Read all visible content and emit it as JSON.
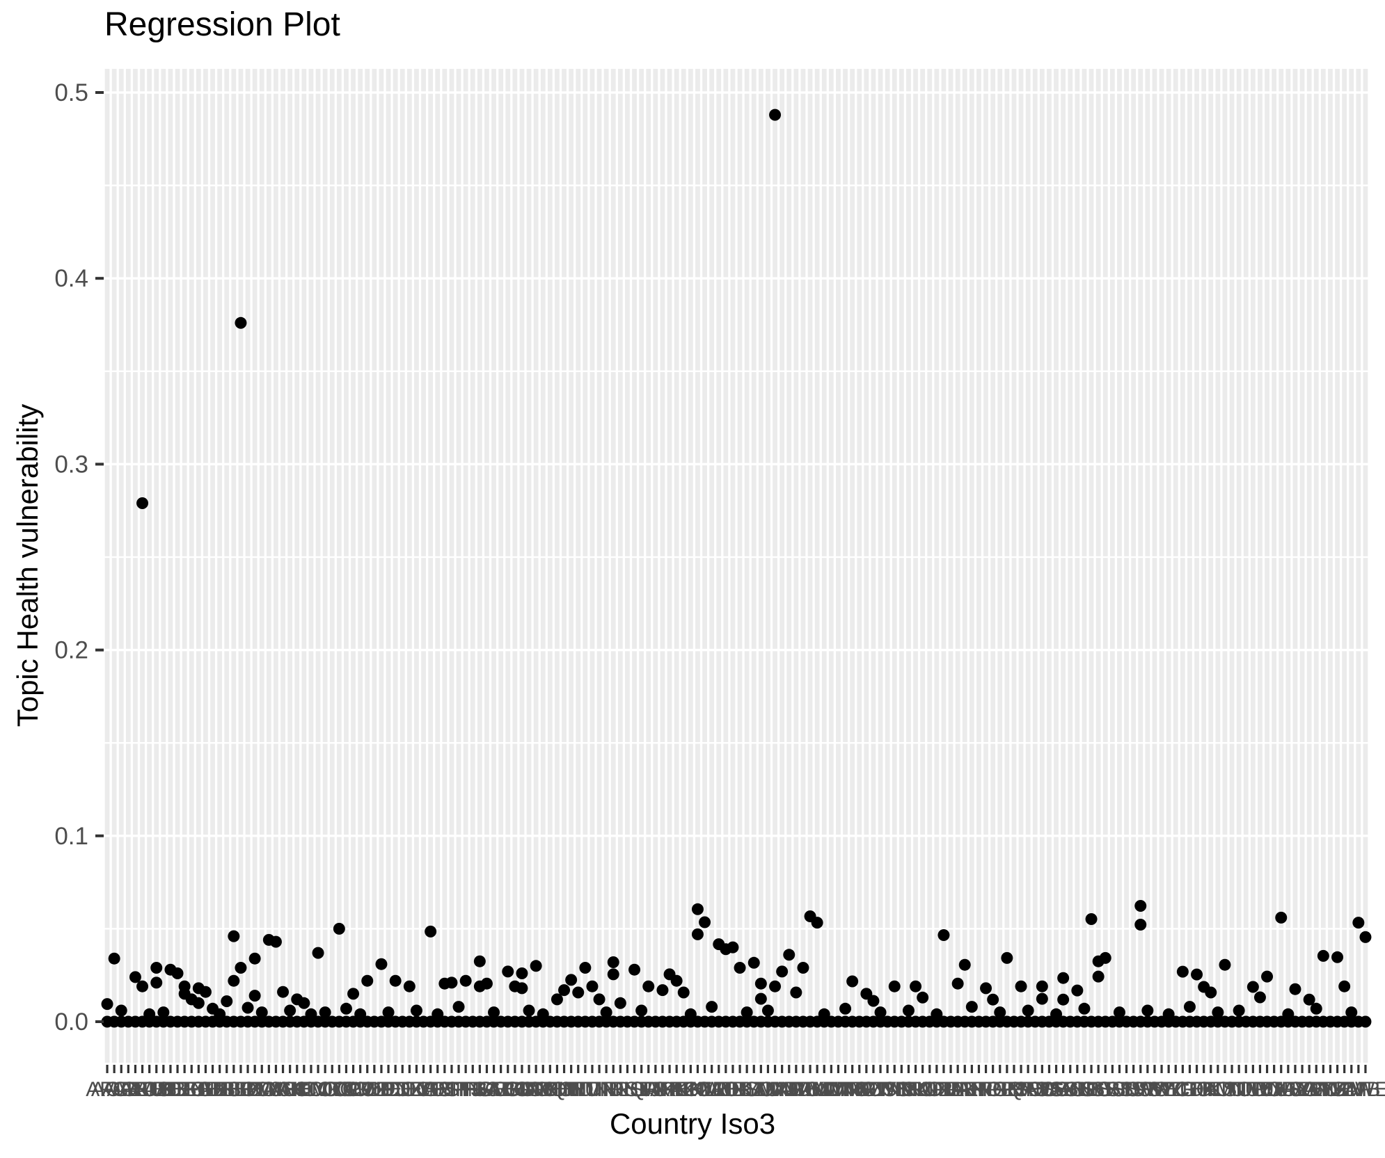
{
  "chart_data": {
    "type": "scatter",
    "title": "Regression Plot",
    "xlabel": "Country Iso3",
    "ylabel": "Topic Health vulnerability",
    "legend": "none",
    "grid": {
      "horizontal_major_every": 0.1,
      "horizontal_minor_every": 0.05,
      "vertical_stripe_per_category": true
    },
    "ylim": [
      -0.021,
      0.512
    ],
    "y_tick_values": [
      0.0,
      0.1,
      0.2,
      0.3,
      0.4,
      0.5
    ],
    "y_ticks": [
      "0.0",
      "0.1",
      "0.2",
      "0.3",
      "0.4",
      "0.5"
    ],
    "categories": [
      "AFG",
      "AGO",
      "ALB",
      "ARE",
      "ARG",
      "ARM",
      "AUS",
      "AUT",
      "AZE",
      "BDI",
      "BEL",
      "BEN",
      "BFA",
      "BGD",
      "BGR",
      "BHR",
      "BHS",
      "BIH",
      "BLR",
      "BLZ",
      "BOL",
      "BRA",
      "BTN",
      "BWA",
      "CAF",
      "CAN",
      "CHE",
      "CHL",
      "CHN",
      "CIV",
      "CMR",
      "COD",
      "COG",
      "COL",
      "COM",
      "CPV",
      "CRI",
      "CUB",
      "CYP",
      "CZE",
      "DEU",
      "DJI",
      "DNK",
      "DOM",
      "DZA",
      "ECU",
      "EGY",
      "ERI",
      "ESP",
      "EST",
      "ETH",
      "FIN",
      "FJI",
      "FRA",
      "FSM",
      "GAB",
      "GBR",
      "GEO",
      "GHA",
      "GIN",
      "GMB",
      "GNB",
      "GNQ",
      "GRC",
      "GTM",
      "GUY",
      "HND",
      "HRV",
      "HTI",
      "HUN",
      "IDN",
      "IND",
      "IRL",
      "IRN",
      "IRQ",
      "ISL",
      "ISR",
      "ITA",
      "JAM",
      "JOR",
      "JPN",
      "KAZ",
      "KEN",
      "KGZ",
      "KHM",
      "KOR",
      "KWT",
      "LAO",
      "LBN",
      "LBR",
      "LBY",
      "LKA",
      "LSO",
      "LTU",
      "LUX",
      "LVA",
      "MAR",
      "MDA",
      "MDG",
      "MDV",
      "MEX",
      "MKD",
      "MLI",
      "MLT",
      "MMR",
      "MNE",
      "MNG",
      "MOZ",
      "MRT",
      "MUS",
      "MWI",
      "MYS",
      "NAM",
      "NER",
      "NGA",
      "NIC",
      "NLD",
      "NOR",
      "NPL",
      "NZL",
      "OMN",
      "PAK",
      "PAN",
      "PER",
      "PHL",
      "PNG",
      "POL",
      "PRK",
      "PRT",
      "PRY",
      "PSE",
      "QAT",
      "ROU",
      "RUS",
      "RWA",
      "SAU",
      "SDN",
      "SEN",
      "SGP",
      "SLB",
      "SLE",
      "SLV",
      "SOM",
      "SRB",
      "SSD",
      "STP",
      "SUR",
      "SVK",
      "SVN",
      "SWE",
      "SWZ",
      "SYC",
      "SYR",
      "TCD",
      "TGO",
      "THA",
      "TJK",
      "TKM",
      "TLS",
      "TON",
      "TTO",
      "TUN",
      "TUR",
      "TUV",
      "TWN",
      "TZA",
      "UGA",
      "UKR",
      "URY",
      "USA",
      "UZB",
      "VCT",
      "VEN",
      "VNM",
      "VUT",
      "WSM",
      "YEM",
      "ZAF",
      "ZMB",
      "ZWE"
    ],
    "baseline": {
      "per_category": true,
      "value": 0.0
    },
    "points": [
      [
        0,
        0.0095
      ],
      [
        1,
        0.034
      ],
      [
        2,
        0.006
      ],
      [
        4,
        0.024
      ],
      [
        5,
        0.279
      ],
      [
        5,
        0.019
      ],
      [
        6,
        0.004
      ],
      [
        7,
        0.029
      ],
      [
        7,
        0.021
      ],
      [
        8,
        0.005
      ],
      [
        9,
        0.028
      ],
      [
        10,
        0.026
      ],
      [
        11,
        0.019
      ],
      [
        11,
        0.015
      ],
      [
        12,
        0.012
      ],
      [
        13,
        0.018
      ],
      [
        13,
        0.01
      ],
      [
        14,
        0.016
      ],
      [
        15,
        0.007
      ],
      [
        16,
        0.004
      ],
      [
        17,
        0.011
      ],
      [
        18,
        0.046
      ],
      [
        18,
        0.022
      ],
      [
        19,
        0.376
      ],
      [
        19,
        0.029
      ],
      [
        20,
        0.0075
      ],
      [
        21,
        0.034
      ],
      [
        21,
        0.014
      ],
      [
        22,
        0.005
      ],
      [
        23,
        0.044
      ],
      [
        24,
        0.043
      ],
      [
        25,
        0.016
      ],
      [
        26,
        0.006
      ],
      [
        27,
        0.012
      ],
      [
        28,
        0.01
      ],
      [
        29,
        0.004
      ],
      [
        30,
        0.037
      ],
      [
        31,
        0.005
      ],
      [
        33,
        0.05
      ],
      [
        34,
        0.007
      ],
      [
        35,
        0.015
      ],
      [
        36,
        0.004
      ],
      [
        37,
        0.022
      ],
      [
        39,
        0.031
      ],
      [
        40,
        0.005
      ],
      [
        41,
        0.022
      ],
      [
        43,
        0.019
      ],
      [
        44,
        0.006
      ],
      [
        46,
        0.0485
      ],
      [
        47,
        0.004
      ],
      [
        48,
        0.0205
      ],
      [
        49,
        0.021
      ],
      [
        50,
        0.008
      ],
      [
        51,
        0.022
      ],
      [
        53,
        0.0325
      ],
      [
        53,
        0.019
      ],
      [
        54,
        0.0205
      ],
      [
        55,
        0.005
      ],
      [
        57,
        0.027
      ],
      [
        58,
        0.019
      ],
      [
        59,
        0.026
      ],
      [
        59,
        0.018
      ],
      [
        60,
        0.006
      ],
      [
        61,
        0.03
      ],
      [
        62,
        0.004
      ],
      [
        64,
        0.012
      ],
      [
        65,
        0.017
      ],
      [
        66,
        0.0225
      ],
      [
        67,
        0.0157
      ],
      [
        68,
        0.029
      ],
      [
        69,
        0.019
      ],
      [
        70,
        0.012
      ],
      [
        71,
        0.005
      ],
      [
        72,
        0.032
      ],
      [
        72,
        0.0255
      ],
      [
        73,
        0.01
      ],
      [
        75,
        0.028
      ],
      [
        76,
        0.006
      ],
      [
        77,
        0.019
      ],
      [
        79,
        0.017
      ],
      [
        80,
        0.0255
      ],
      [
        81,
        0.022
      ],
      [
        82,
        0.0157
      ],
      [
        83,
        0.004
      ],
      [
        84,
        0.0605
      ],
      [
        84,
        0.047
      ],
      [
        85,
        0.0535
      ],
      [
        86,
        0.008
      ],
      [
        87,
        0.0417
      ],
      [
        88,
        0.039
      ],
      [
        89,
        0.04
      ],
      [
        90,
        0.029
      ],
      [
        91,
        0.005
      ],
      [
        92,
        0.0317
      ],
      [
        93,
        0.0205
      ],
      [
        93,
        0.0123
      ],
      [
        94,
        0.006
      ],
      [
        95,
        0.488
      ],
      [
        95,
        0.019
      ],
      [
        96,
        0.027
      ],
      [
        97,
        0.036
      ],
      [
        98,
        0.0157
      ],
      [
        99,
        0.029
      ],
      [
        100,
        0.0567
      ],
      [
        101,
        0.0533
      ],
      [
        102,
        0.004
      ],
      [
        105,
        0.007
      ],
      [
        106,
        0.0217
      ],
      [
        108,
        0.015
      ],
      [
        109,
        0.0112
      ],
      [
        110,
        0.005
      ],
      [
        112,
        0.019
      ],
      [
        114,
        0.006
      ],
      [
        115,
        0.019
      ],
      [
        116,
        0.013
      ],
      [
        118,
        0.004
      ],
      [
        119,
        0.0466
      ],
      [
        121,
        0.0205
      ],
      [
        122,
        0.0306
      ],
      [
        123,
        0.008
      ],
      [
        125,
        0.018
      ],
      [
        126,
        0.0119
      ],
      [
        127,
        0.005
      ],
      [
        128,
        0.0343
      ],
      [
        130,
        0.019
      ],
      [
        131,
        0.006
      ],
      [
        133,
        0.019
      ],
      [
        133,
        0.0123
      ],
      [
        135,
        0.004
      ],
      [
        136,
        0.0235
      ],
      [
        136,
        0.0119
      ],
      [
        138,
        0.0168
      ],
      [
        139,
        0.007
      ],
      [
        140,
        0.0552
      ],
      [
        141,
        0.0325
      ],
      [
        141,
        0.0243
      ],
      [
        142,
        0.0343
      ],
      [
        144,
        0.005
      ],
      [
        147,
        0.0623
      ],
      [
        147,
        0.0522
      ],
      [
        148,
        0.006
      ],
      [
        151,
        0.004
      ],
      [
        153,
        0.0269
      ],
      [
        154,
        0.008
      ],
      [
        155,
        0.0254
      ],
      [
        156,
        0.0187
      ],
      [
        157,
        0.0157
      ],
      [
        158,
        0.005
      ],
      [
        159,
        0.0306
      ],
      [
        161,
        0.006
      ],
      [
        163,
        0.0187
      ],
      [
        164,
        0.0131
      ],
      [
        165,
        0.0243
      ],
      [
        167,
        0.056
      ],
      [
        168,
        0.004
      ],
      [
        169,
        0.0175
      ],
      [
        171,
        0.0119
      ],
      [
        172,
        0.007
      ],
      [
        173,
        0.0354
      ],
      [
        175,
        0.0347
      ],
      [
        176,
        0.019
      ],
      [
        177,
        0.005
      ],
      [
        178,
        0.0533
      ],
      [
        179,
        0.0455
      ]
    ]
  },
  "style": {
    "background": "#FFFFFF",
    "stripe_color": "#EBEBEB",
    "gridline_color": "#FFFFFF",
    "point_color": "#000000",
    "axis_tick_color": "#333333",
    "tick_label_color": "#4D4D4D",
    "title_color": "#000000"
  }
}
